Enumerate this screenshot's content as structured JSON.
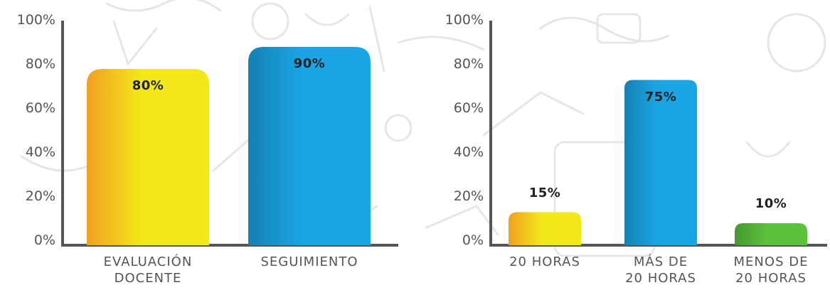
{
  "chart_data": [
    {
      "type": "bar",
      "categories": [
        "EVALUACIÓN\nDOCENTE",
        "SEGUIMIENTO"
      ],
      "values": [
        80,
        90
      ],
      "data_labels": [
        "80%",
        "90%"
      ],
      "ylim": [
        0,
        100
      ],
      "yticks": [
        "0%",
        "20%",
        "40%",
        "60%",
        "80%",
        "100%"
      ],
      "colors": [
        "#f2e81a",
        "#1aa5e6"
      ],
      "grid": false
    },
    {
      "type": "bar",
      "categories": [
        "20 HORAS",
        "MÁS DE\n20 HORAS",
        "MENOS DE\n20 HORAS"
      ],
      "values": [
        15,
        75,
        10
      ],
      "data_labels": [
        "15%",
        "75%",
        "10%"
      ],
      "ylim": [
        0,
        100
      ],
      "yticks": [
        "0%",
        "20%",
        "40%",
        "60%",
        "80%",
        "100%"
      ],
      "colors": [
        "#f2e81a",
        "#1aa5e6",
        "#5cc23c"
      ],
      "grid": false
    }
  ]
}
